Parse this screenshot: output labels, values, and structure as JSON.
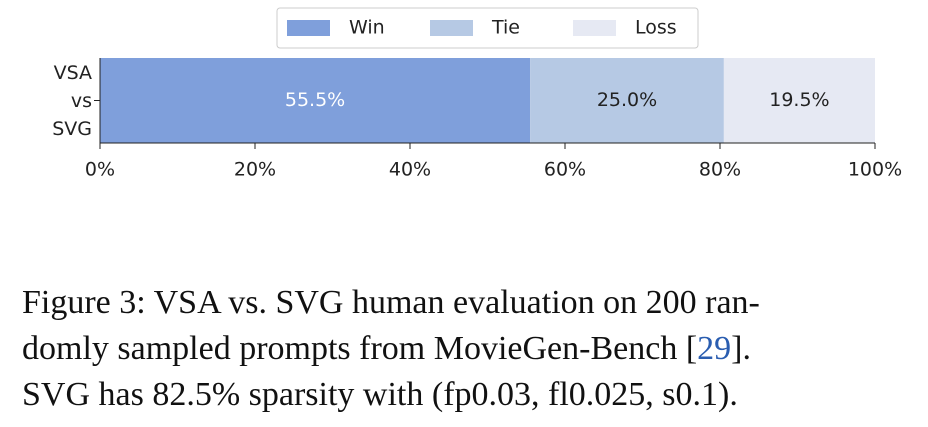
{
  "chart_data": {
    "type": "stacked-barh",
    "categories": [
      "VSA\nvs\nSVG"
    ],
    "series": [
      {
        "name": "Win",
        "color": "#7f9fdb",
        "values": [
          55.5
        ],
        "value_labels": [
          "55.5%"
        ],
        "label_color": "#ffffff"
      },
      {
        "name": "Tie",
        "color": "#b6c9e4",
        "values": [
          25.0
        ],
        "value_labels": [
          "25.0%"
        ],
        "label_color": "#222222"
      },
      {
        "name": "Loss",
        "color": "#e6e9f3",
        "values": [
          19.5
        ],
        "value_labels": [
          "19.5%"
        ],
        "label_color": "#222222"
      }
    ],
    "xlim": [
      0,
      100
    ],
    "xticks": [
      {
        "value": 0,
        "label": "0%"
      },
      {
        "value": 20,
        "label": "20%"
      },
      {
        "value": 40,
        "label": "40%"
      },
      {
        "value": 60,
        "label": "60%"
      },
      {
        "value": 80,
        "label": "80%"
      },
      {
        "value": 100,
        "label": "100%"
      }
    ],
    "legend": "top"
  },
  "caption": {
    "lines": [
      [
        "Figure 3: VSA vs. SVG human evaluation on 200 ran-"
      ],
      [
        "domly sampled prompts from MovieGen-Bench [",
        "29",
        "]."
      ],
      [
        "SVG has 82.5% sparsity with (fp0.03, fl0.025, s0.1)."
      ]
    ]
  }
}
